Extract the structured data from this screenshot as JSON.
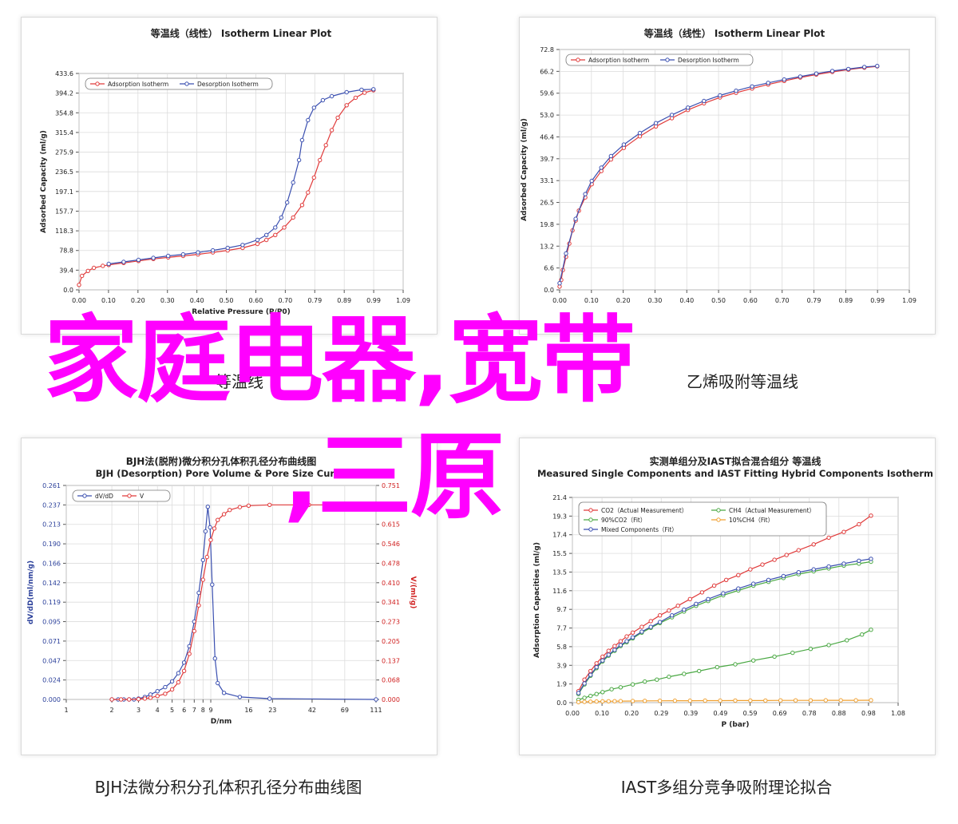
{
  "overlay": {
    "line1": "家庭电器,宽带",
    "line2": ",三原",
    "color": "#ff00ff"
  },
  "partial_captions": {
    "left": "等温线",
    "right": "乙烯吸附等温线"
  },
  "captions": {
    "bottom_left": "BJH法微分积分孔体积孔径分布曲线图",
    "bottom_right": "IAST多组分竞争吸附理论拟合"
  },
  "chart_data": [
    {
      "id": "tl",
      "type": "line",
      "title": "等温线（线性） Isotherm Linear Plot",
      "xlabel": "Relative Pressure (P/P0)",
      "ylabel": "Adsorbed Capacity (ml/g)",
      "xlim": [
        0,
        1.09
      ],
      "ylim": [
        0,
        433.6
      ],
      "xticks": [
        "0.00",
        "0.10",
        "0.20",
        "0.30",
        "0.40",
        "0.50",
        "0.60",
        "0.70",
        "0.79",
        "0.89",
        "0.99",
        "1.09"
      ],
      "yticks": [
        "0.0",
        "39.4",
        "78.8",
        "118.3",
        "157.7",
        "197.1",
        "236.5",
        "275.9",
        "315.4",
        "354.8",
        "394.2",
        "433.6"
      ],
      "legend": "top-left",
      "grid": true,
      "series": [
        {
          "name": "Adsorption Isotherm",
          "color": "#e03a3a",
          "x": [
            0,
            0.01,
            0.03,
            0.05,
            0.08,
            0.1,
            0.15,
            0.2,
            0.25,
            0.3,
            0.35,
            0.4,
            0.45,
            0.5,
            0.55,
            0.6,
            0.63,
            0.66,
            0.69,
            0.72,
            0.75,
            0.77,
            0.79,
            0.81,
            0.83,
            0.85,
            0.87,
            0.9,
            0.93,
            0.96,
            0.99
          ],
          "y": [
            10,
            28,
            38,
            44,
            48,
            50,
            54,
            58,
            62,
            65,
            68,
            71,
            75,
            79,
            84,
            92,
            100,
            110,
            125,
            145,
            170,
            195,
            225,
            260,
            290,
            320,
            345,
            370,
            385,
            395,
            400
          ]
        },
        {
          "name": "Desorption Isotherm",
          "color": "#3a4fb0",
          "x": [
            0.1,
            0.15,
            0.2,
            0.25,
            0.3,
            0.35,
            0.4,
            0.45,
            0.5,
            0.55,
            0.6,
            0.63,
            0.66,
            0.68,
            0.7,
            0.72,
            0.74,
            0.75,
            0.77,
            0.79,
            0.82,
            0.85,
            0.9,
            0.95,
            0.99
          ],
          "y": [
            52,
            56,
            60,
            64,
            68,
            71,
            75,
            79,
            84,
            90,
            100,
            110,
            125,
            145,
            175,
            215,
            260,
            300,
            340,
            365,
            380,
            388,
            396,
            401,
            402
          ]
        }
      ]
    },
    {
      "id": "tr",
      "type": "line",
      "title": "等温线（线性） Isotherm Linear Plot",
      "xlabel": "",
      "ylabel": "Adsorbed Capacity (ml/g)",
      "xlim": [
        0,
        1.09
      ],
      "ylim": [
        0,
        72.8
      ],
      "xticks": [
        "0.00",
        "0.10",
        "0.20",
        "0.30",
        "0.40",
        "0.50",
        "0.60",
        "0.70",
        "0.79",
        "0.89",
        "0.99",
        "1.09"
      ],
      "yticks": [
        "0.0",
        "6.6",
        "13.2",
        "19.8",
        "26.5",
        "33.1",
        "39.7",
        "46.4",
        "53.0",
        "59.6",
        "66.2",
        "72.8"
      ],
      "legend": "top-left",
      "grid": true,
      "series": [
        {
          "name": "Adsorption Isotherm",
          "color": "#e03a3a",
          "x": [
            0,
            0.005,
            0.01,
            0.02,
            0.03,
            0.04,
            0.05,
            0.06,
            0.08,
            0.1,
            0.13,
            0.16,
            0.2,
            0.25,
            0.3,
            0.35,
            0.4,
            0.45,
            0.5,
            0.55,
            0.6,
            0.65,
            0.7,
            0.75,
            0.8,
            0.85,
            0.9,
            0.95,
            0.99
          ],
          "y": [
            1,
            3,
            6,
            10,
            14,
            18,
            21,
            24,
            28,
            32,
            36,
            39.5,
            43,
            46.5,
            49.5,
            52,
            54.5,
            56.5,
            58.3,
            59.7,
            61,
            62.2,
            63.3,
            64.3,
            65.2,
            66,
            66.7,
            67.3,
            67.7
          ]
        },
        {
          "name": "Desorption Isotherm",
          "color": "#3a4fb0",
          "x": [
            0,
            0.02,
            0.05,
            0.08,
            0.1,
            0.13,
            0.16,
            0.2,
            0.25,
            0.3,
            0.35,
            0.4,
            0.45,
            0.5,
            0.55,
            0.6,
            0.65,
            0.7,
            0.75,
            0.8,
            0.85,
            0.9,
            0.95,
            0.99
          ],
          "y": [
            2,
            11,
            21.5,
            29,
            33,
            37,
            40.5,
            44,
            47.5,
            50.5,
            53,
            55.2,
            57.2,
            58.9,
            60.3,
            61.6,
            62.7,
            63.7,
            64.6,
            65.5,
            66.3,
            66.9,
            67.5,
            67.8
          ]
        }
      ]
    },
    {
      "id": "bl",
      "type": "line",
      "title": "BJH法(脱附)微分积分孔体积孔径分布曲线图",
      "subtitle": "BJH (Desorption) Pore Volume & Pore Size Curve",
      "xlabel": "D/nm",
      "ylabel": "dV/dD(ml/nm/g)",
      "y2label": "V/(ml/g)",
      "xscale": "log",
      "xlim": [
        1,
        111
      ],
      "ylim": [
        0,
        0.261
      ],
      "y2lim": [
        0,
        0.751
      ],
      "xticks": [
        "1",
        "2",
        "3",
        "4",
        "5",
        "6",
        "7",
        "8",
        "9",
        "16",
        "23",
        "42",
        "69",
        "111"
      ],
      "yticks": [
        "0.000",
        "0.024",
        "0.047",
        "0.071",
        "0.095",
        "0.119",
        "0.142",
        "0.166",
        "0.190",
        "0.213",
        "0.237",
        "0.261"
      ],
      "y2ticks": [
        "0.000",
        "0.068",
        "0.137",
        "0.205",
        "0.273",
        "0.341",
        "0.410",
        "0.478",
        "0.546",
        "0.615",
        "0.683",
        "0.751"
      ],
      "legend": "top-left",
      "grid": true,
      "series": [
        {
          "name": "dV/dD",
          "axis": "left",
          "color": "#3a4fb0",
          "x": [
            2,
            2.2,
            2.4,
            2.6,
            2.8,
            3,
            3.3,
            3.6,
            4,
            4.5,
            5,
            5.5,
            6,
            6.5,
            7,
            7.5,
            8,
            8.3,
            8.6,
            8.9,
            9.2,
            9.6,
            10,
            11,
            14,
            22,
            111
          ],
          "y": [
            0,
            0,
            0,
            0,
            0,
            0.001,
            0.003,
            0.006,
            0.01,
            0.015,
            0.022,
            0.032,
            0.045,
            0.065,
            0.095,
            0.13,
            0.17,
            0.205,
            0.235,
            0.21,
            0.14,
            0.05,
            0.02,
            0.008,
            0.003,
            0.001,
            0
          ]
        },
        {
          "name": "V",
          "axis": "right",
          "color": "#e03a3a",
          "x": [
            2,
            2.3,
            2.6,
            3,
            3.3,
            3.6,
            4,
            4.5,
            5,
            5.5,
            6,
            6.5,
            7,
            7.5,
            8,
            8.5,
            9,
            9.5,
            10,
            11,
            12,
            14,
            16,
            22,
            40,
            111
          ],
          "y": [
            0,
            0,
            0,
            0.001,
            0.003,
            0.006,
            0.012,
            0.02,
            0.035,
            0.06,
            0.1,
            0.16,
            0.24,
            0.33,
            0.42,
            0.5,
            0.56,
            0.6,
            0.63,
            0.65,
            0.665,
            0.675,
            0.68,
            0.683,
            0.683,
            0.683
          ]
        }
      ]
    },
    {
      "id": "br",
      "type": "line",
      "title": "实测单组分及IAST拟合混合组分 等温线",
      "subtitle": "Measured Single Components and IAST Fitting Hybrid Components Isotherm",
      "xlabel": "P (bar)",
      "ylabel": "Adsorption Capacities (ml/g)",
      "xlim": [
        0,
        1.08
      ],
      "ylim": [
        0,
        21.4
      ],
      "xticks": [
        "0.00",
        "0.10",
        "0.20",
        "0.29",
        "0.39",
        "0.49",
        "0.59",
        "0.69",
        "0.78",
        "0.88",
        "0.98",
        "1.08"
      ],
      "yticks": [
        "0.0",
        "1.9",
        "3.9",
        "5.8",
        "7.7",
        "9.7",
        "11.6",
        "13.5",
        "15.5",
        "17.4",
        "19.3",
        "21.4"
      ],
      "legend": "top-left",
      "grid": true,
      "series": [
        {
          "name": "CO2（Actual Measurement）",
          "color": "#e03a3a",
          "x": [
            0.02,
            0.04,
            0.06,
            0.08,
            0.1,
            0.12,
            0.14,
            0.16,
            0.18,
            0.2,
            0.23,
            0.26,
            0.29,
            0.32,
            0.35,
            0.39,
            0.43,
            0.47,
            0.51,
            0.55,
            0.59,
            0.63,
            0.67,
            0.71,
            0.75,
            0.8,
            0.85,
            0.9,
            0.95,
            0.99
          ],
          "y": [
            1.2,
            2.4,
            3.3,
            4.1,
            4.8,
            5.4,
            5.9,
            6.4,
            6.9,
            7.3,
            7.9,
            8.5,
            9.1,
            9.6,
            10.1,
            10.8,
            11.5,
            12.2,
            12.8,
            13.3,
            13.9,
            14.4,
            14.9,
            15.4,
            15.9,
            16.5,
            17.2,
            17.8,
            18.6,
            19.5
          ]
        },
        {
          "name": "CH4（Actual Measurement）",
          "color": "#4aa843",
          "x": [
            0.02,
            0.04,
            0.06,
            0.08,
            0.1,
            0.13,
            0.16,
            0.2,
            0.24,
            0.28,
            0.32,
            0.37,
            0.42,
            0.48,
            0.54,
            0.6,
            0.67,
            0.73,
            0.79,
            0.85,
            0.91,
            0.96,
            0.99
          ],
          "y": [
            0.3,
            0.5,
            0.7,
            0.9,
            1.1,
            1.4,
            1.6,
            1.9,
            2.2,
            2.4,
            2.7,
            3.0,
            3.3,
            3.7,
            4.0,
            4.4,
            4.8,
            5.2,
            5.6,
            6.0,
            6.5,
            7.1,
            7.6
          ]
        },
        {
          "name": "90%CO2（Fit）",
          "color": "#4aa843",
          "x": [
            0.02,
            0.04,
            0.06,
            0.08,
            0.1,
            0.12,
            0.14,
            0.16,
            0.18,
            0.2,
            0.23,
            0.26,
            0.29,
            0.33,
            0.37,
            0.41,
            0.45,
            0.5,
            0.55,
            0.6,
            0.65,
            0.7,
            0.75,
            0.8,
            0.85,
            0.9,
            0.95,
            0.99
          ],
          "y": [
            0.9,
            1.9,
            2.8,
            3.6,
            4.3,
            4.9,
            5.4,
            5.9,
            6.3,
            6.7,
            7.3,
            7.8,
            8.3,
            8.9,
            9.5,
            10.1,
            10.6,
            11.2,
            11.7,
            12.2,
            12.6,
            13.0,
            13.4,
            13.7,
            14.0,
            14.3,
            14.5,
            14.7
          ]
        },
        {
          "name": "10%CH4（Fit）",
          "color": "#f0a030",
          "x": [
            0.02,
            0.04,
            0.06,
            0.08,
            0.1,
            0.12,
            0.14,
            0.16,
            0.2,
            0.24,
            0.29,
            0.34,
            0.39,
            0.44,
            0.49,
            0.54,
            0.59,
            0.64,
            0.69,
            0.74,
            0.79,
            0.84,
            0.89,
            0.94,
            0.99
          ],
          "y": [
            0.05,
            0.08,
            0.1,
            0.12,
            0.13,
            0.14,
            0.15,
            0.16,
            0.17,
            0.18,
            0.19,
            0.2,
            0.2,
            0.21,
            0.21,
            0.22,
            0.22,
            0.22,
            0.23,
            0.23,
            0.23,
            0.24,
            0.24,
            0.24,
            0.25
          ]
        },
        {
          "name": "Mixed Components（Fit）",
          "color": "#3a4fb0",
          "x": [
            0.02,
            0.04,
            0.06,
            0.08,
            0.1,
            0.12,
            0.14,
            0.16,
            0.18,
            0.2,
            0.23,
            0.26,
            0.29,
            0.33,
            0.37,
            0.41,
            0.45,
            0.5,
            0.55,
            0.6,
            0.65,
            0.7,
            0.75,
            0.8,
            0.85,
            0.9,
            0.95,
            0.99
          ],
          "y": [
            1.0,
            2.0,
            2.9,
            3.7,
            4.4,
            5.0,
            5.5,
            6.0,
            6.4,
            6.8,
            7.4,
            7.9,
            8.4,
            9.1,
            9.7,
            10.3,
            10.8,
            11.4,
            11.9,
            12.4,
            12.8,
            13.2,
            13.6,
            13.9,
            14.2,
            14.5,
            14.8,
            15.0
          ]
        }
      ]
    }
  ]
}
